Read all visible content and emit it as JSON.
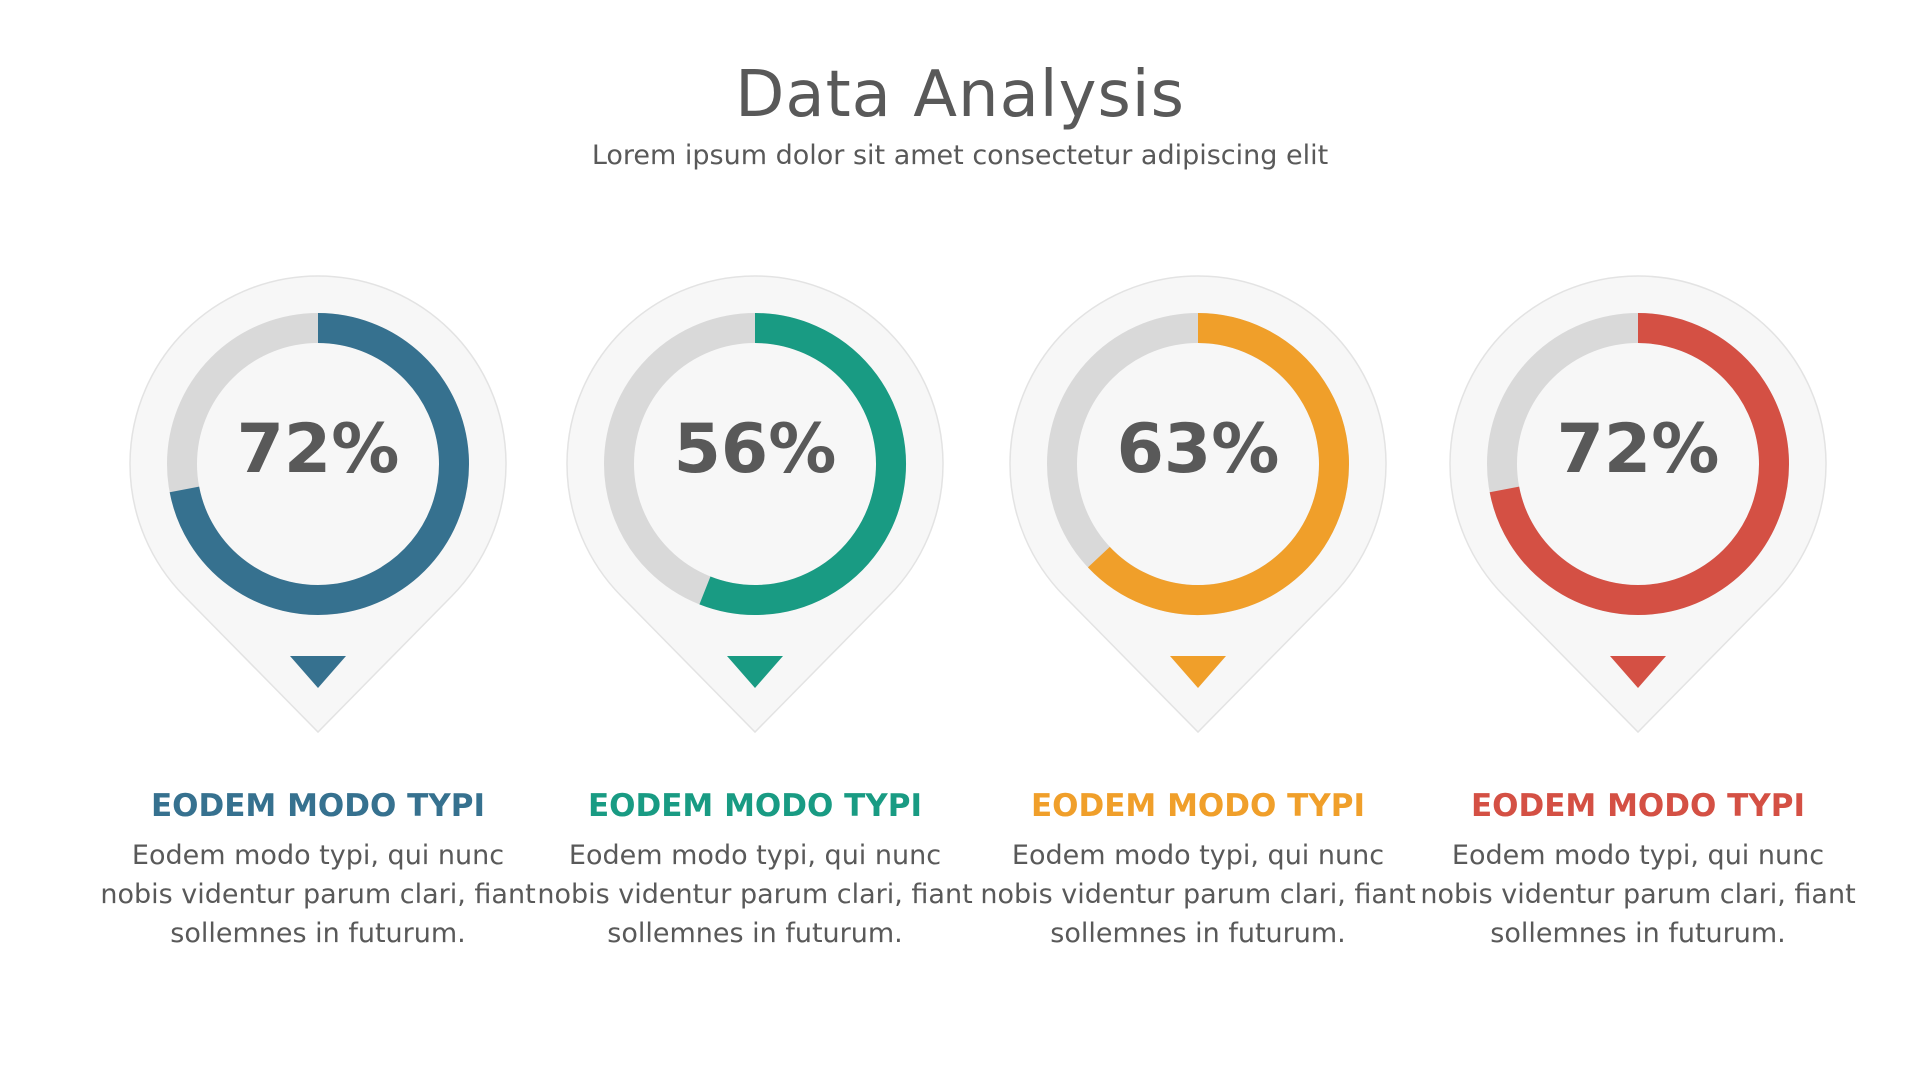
{
  "header": {
    "title": "Data Analysis",
    "subtitle": "Lorem ipsum dolor sit amet consectetur adipiscing elit"
  },
  "chart_data": {
    "type": "donut",
    "track_color": "#d9d9d9",
    "pin_fill": "#f7f7f7",
    "items": [
      {
        "value": 72,
        "label": "72%",
        "heading": "EODEM MODO TYPI",
        "text": "Eodem modo typi, qui nunc nobis videntur parum clari, fiant sollemnes in futurum.",
        "color": "#36718f"
      },
      {
        "value": 56,
        "label": "56%",
        "heading": "EODEM MODO TYPI",
        "text": "Eodem modo typi, qui nunc nobis videntur parum clari, fiant sollemnes in futurum.",
        "color": "#199b83"
      },
      {
        "value": 63,
        "label": "63%",
        "heading": "EODEM MODO TYPI",
        "text": "Eodem modo typi, qui nunc nobis videntur parum clari, fiant sollemnes in futurum.",
        "color": "#f09f2a"
      },
      {
        "value": 72,
        "label": "72%",
        "heading": "EODEM MODO TYPI",
        "text": "Eodem modo typi, qui nunc nobis videntur parum clari, fiant sollemnes in futurum.",
        "color": "#d45044"
      }
    ]
  }
}
